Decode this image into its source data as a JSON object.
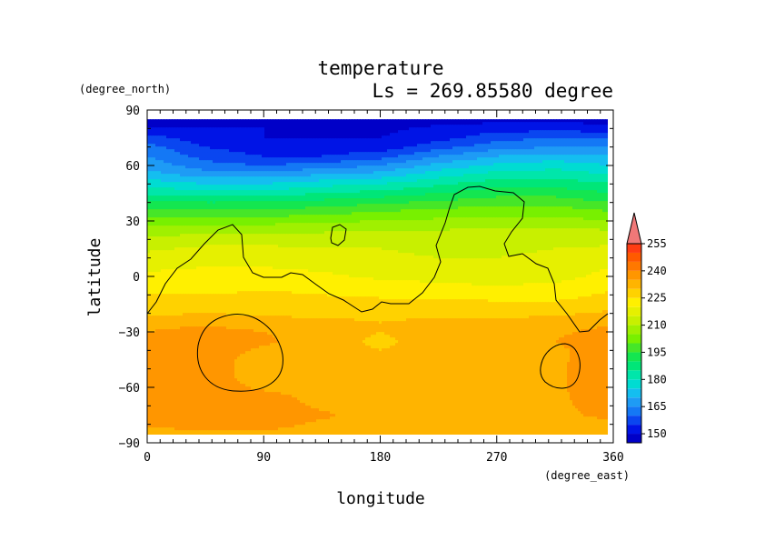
{
  "chart_data": {
    "type": "heatmap",
    "title": "temperature",
    "subtitle": "Ls = 269.85580 degree",
    "xlabel": "longitude",
    "ylabel": "latitude",
    "x_units": "(degree_east)",
    "y_units": "(degree_north)",
    "xlim": [
      0,
      360
    ],
    "ylim": [
      -90,
      90
    ],
    "x_ticks": [
      0,
      90,
      180,
      270,
      360
    ],
    "y_ticks": [
      -90,
      -60,
      -30,
      0,
      30,
      60,
      90
    ],
    "x_tick_labels": [
      "0",
      "90",
      "180",
      "270",
      "360"
    ],
    "y_tick_labels": [
      "−90",
      "−60",
      "−30",
      "0",
      "30",
      "60",
      "90"
    ],
    "grid": false,
    "colorbar": {
      "levels": [
        145,
        150,
        155,
        160,
        165,
        170,
        175,
        180,
        185,
        190,
        195,
        200,
        205,
        210,
        215,
        220,
        225,
        230,
        235,
        240,
        245,
        250,
        255,
        260
      ],
      "colors": [
        "#0000c8",
        "#0014e6",
        "#0a46f0",
        "#1478f5",
        "#1e9bf5",
        "#14bef0",
        "#00dcd2",
        "#00e6aa",
        "#00e678",
        "#14e650",
        "#46e628",
        "#78f000",
        "#a0f000",
        "#c8f000",
        "#e6f000",
        "#fff000",
        "#ffd200",
        "#ffb400",
        "#ff9600",
        "#ff7800",
        "#ff5a00",
        "#ff3c14",
        "#f02828",
        "#f07878"
      ],
      "tick_labels": [
        "150",
        "165",
        "180",
        "195",
        "210",
        "225",
        "240",
        "255"
      ],
      "extend": "max"
    },
    "latitudes": [
      85,
      80,
      75,
      70,
      65,
      60,
      55,
      50,
      45,
      40,
      35,
      30,
      25,
      20,
      15,
      10,
      5,
      0,
      -5,
      -10,
      -15,
      -20,
      -25,
      -30,
      -35,
      -40,
      -45,
      -50,
      -55,
      -60,
      -65,
      -70,
      -75,
      -80,
      -85
    ],
    "longitudes": [
      0,
      45,
      90,
      135,
      180,
      225,
      270,
      315,
      360
    ],
    "values": [
      [
        148,
        148,
        148,
        148,
        148,
        148,
        148,
        148,
        148
      ],
      [
        150,
        150,
        150,
        149,
        149,
        151,
        153,
        153,
        152
      ],
      [
        157,
        152,
        150,
        150,
        150,
        153,
        158,
        160,
        160
      ],
      [
        162,
        155,
        152,
        152,
        152,
        158,
        163,
        165,
        165
      ],
      [
        165,
        158,
        155,
        155,
        158,
        165,
        170,
        172,
        170
      ],
      [
        168,
        162,
        160,
        162,
        165,
        172,
        176,
        178,
        175
      ],
      [
        172,
        168,
        168,
        170,
        172,
        178,
        182,
        183,
        180
      ],
      [
        178,
        175,
        175,
        178,
        180,
        184,
        188,
        188,
        185
      ],
      [
        184,
        182,
        182,
        185,
        187,
        190,
        193,
        193,
        190
      ],
      [
        190,
        190,
        190,
        192,
        194,
        196,
        198,
        198,
        195
      ],
      [
        196,
        196,
        196,
        198,
        200,
        202,
        203,
        203,
        200
      ],
      [
        202,
        203,
        203,
        204,
        205,
        206,
        207,
        207,
        205
      ],
      [
        207,
        208,
        208,
        209,
        210,
        210,
        211,
        211,
        210
      ],
      [
        211,
        213,
        213,
        213,
        213,
        213,
        213,
        213,
        213
      ],
      [
        214,
        216,
        216,
        215,
        215,
        214,
        214,
        215,
        216
      ],
      [
        217,
        218,
        218,
        217,
        216,
        215,
        215,
        216,
        218
      ],
      [
        219,
        220,
        220,
        219,
        217,
        216,
        216,
        217,
        220
      ],
      [
        221,
        222,
        222,
        221,
        219,
        218,
        217,
        218,
        222
      ],
      [
        223,
        223,
        224,
        223,
        222,
        221,
        220,
        221,
        224
      ],
      [
        225,
        225,
        226,
        225,
        224,
        224,
        223,
        223,
        226
      ],
      [
        227,
        227,
        227,
        227,
        227,
        227,
        226,
        226,
        228
      ],
      [
        229,
        230,
        229,
        229,
        229,
        229,
        229,
        229,
        231
      ],
      [
        233,
        234,
        232,
        231,
        230,
        231,
        231,
        232,
        234
      ],
      [
        235,
        237,
        235,
        232,
        230,
        232,
        233,
        234,
        237
      ],
      [
        236,
        238,
        236,
        232,
        229,
        232,
        234,
        235,
        238
      ],
      [
        236,
        238,
        234,
        232,
        230,
        232,
        234,
        234,
        238
      ],
      [
        236,
        238,
        232,
        232,
        232,
        232,
        233,
        234,
        238
      ],
      [
        236,
        238,
        232,
        232,
        233,
        232,
        233,
        234,
        239
      ],
      [
        236,
        238,
        232,
        232,
        232,
        232,
        233,
        234,
        239
      ],
      [
        236,
        238,
        234,
        232,
        232,
        232,
        232,
        234,
        239
      ],
      [
        237,
        238,
        237,
        233,
        232,
        232,
        232,
        234,
        238
      ],
      [
        238,
        238,
        238,
        234,
        232,
        232,
        232,
        234,
        237
      ],
      [
        237,
        238,
        238,
        236,
        232,
        232,
        232,
        234,
        236
      ],
      [
        236,
        237,
        237,
        234,
        232,
        232,
        232,
        234,
        234
      ],
      [
        233,
        234,
        234,
        233,
        232,
        232,
        232,
        232,
        232
      ]
    ]
  }
}
